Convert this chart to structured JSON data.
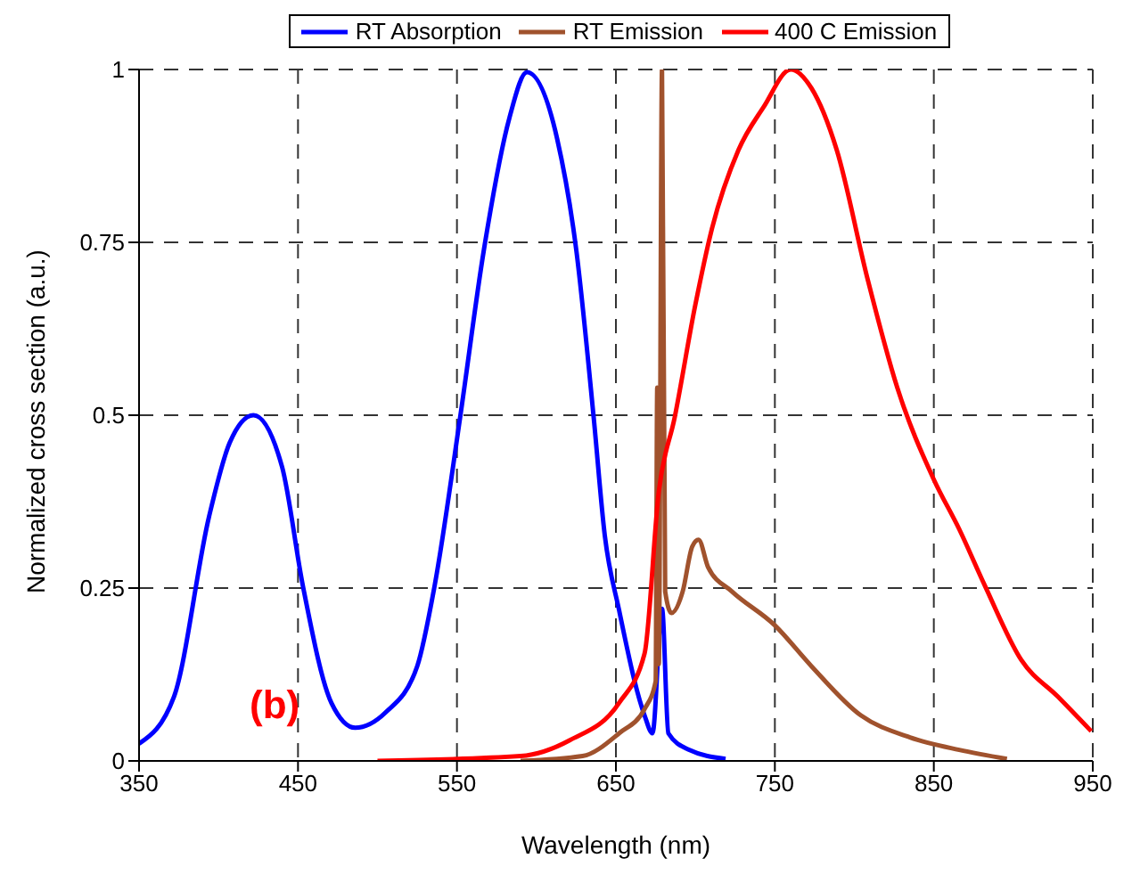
{
  "chart_data": {
    "type": "line",
    "xlabel": "Wavelength (nm)",
    "ylabel": "Normalized cross section (a.u.)",
    "xlim": [
      350,
      950
    ],
    "xticks": [
      350,
      450,
      550,
      650,
      750,
      850,
      950
    ],
    "ylim": [
      0,
      1
    ],
    "yticks": [
      0,
      0.25,
      0.5,
      0.75,
      1
    ],
    "grid": true,
    "legend": "top",
    "marker": "none",
    "annotations": [
      "(b)"
    ],
    "series": [
      {
        "name": "RT Absorption",
        "color": "#0000ff",
        "x": [
          350,
          372,
          394,
          407,
          422,
          440,
          453,
          471,
          486,
          505,
          525,
          536,
          552,
          567,
          583,
          594,
          613,
          625,
          636,
          643,
          652,
          668,
          673,
          679,
          683,
          696,
          719
        ],
        "values": [
          0.025,
          0.093,
          0.353,
          0.46,
          0.5,
          0.425,
          0.254,
          0.084,
          0.048,
          0.07,
          0.137,
          0.254,
          0.497,
          0.74,
          0.93,
          0.996,
          0.9,
          0.74,
          0.497,
          0.326,
          0.218,
          0.066,
          0.04,
          0.22,
          0.04,
          0.016,
          0.003
        ]
      },
      {
        "name": "RT Emission",
        "color": "#a0522d",
        "x": [
          590,
          629,
          652,
          668,
          675,
          676,
          677,
          679,
          681,
          685,
          692,
          698,
          702,
          708,
          723,
          750,
          773,
          804,
          835,
          866,
          896
        ],
        "values": [
          0,
          0.007,
          0.04,
          0.075,
          0.115,
          0.54,
          0.14,
          1,
          0.245,
          0.214,
          0.245,
          0.31,
          0.32,
          0.28,
          0.245,
          0.196,
          0.137,
          0.066,
          0.034,
          0.016,
          0.003
        ]
      },
      {
        "name": "400 C Emission",
        "color": "#ff0000",
        "x": [
          500,
          590,
          621,
          652,
          668,
          677,
          687,
          700,
          710,
          727,
          743,
          760,
          773,
          789,
          808,
          827,
          850,
          866,
          882,
          905,
          928,
          949
        ],
        "values": [
          0,
          0.007,
          0.03,
          0.084,
          0.155,
          0.39,
          0.497,
          0.66,
          0.766,
          0.883,
          0.946,
          1,
          0.973,
          0.883,
          0.7,
          0.54,
          0.407,
          0.335,
          0.254,
          0.146,
          0.093,
          0.043
        ]
      }
    ]
  }
}
